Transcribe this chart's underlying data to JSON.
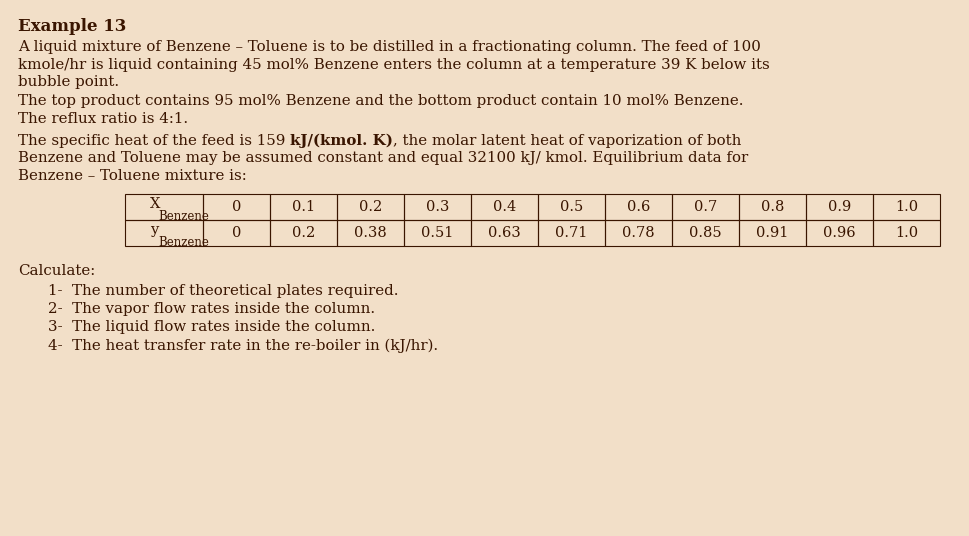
{
  "title": "Example 13",
  "paragraph1": "A liquid mixture of Benzene – Toluene is to be distilled in a fractionating column. The feed of 100\nkmole/hr is liquid containing 45 mol% Benzene enters the column at a temperature 39 K below its\nbubble point.",
  "paragraph2": "The top product contains 95 mol% Benzene and the bottom product contain 10 mol% Benzene.\nThe reflux ratio is 4:1.",
  "paragraph3_part1": "The specific heat of the feed is 159 ",
  "paragraph3_bold": "kJ/(kmol. K)",
  "paragraph3_part2_line1": ", the molar latent heat of vaporization of both",
  "paragraph3_part2_rest": "Benzene and Toluene may be assumed constant and equal 32100 kJ/ kmol. Equilibrium data for\nBenzene – Toluene mixture is:",
  "table_x_values": [
    "0",
    "0.1",
    "0.2",
    "0.3",
    "0.4",
    "0.5",
    "0.6",
    "0.7",
    "0.8",
    "0.9",
    "1.0"
  ],
  "table_y_values": [
    "0",
    "0.2",
    "0.38",
    "0.51",
    "0.63",
    "0.71",
    "0.78",
    "0.85",
    "0.91",
    "0.96",
    "1.0"
  ],
  "calculate_label": "Calculate:",
  "items": [
    "1-  The number of theoretical plates required.",
    "2-  The vapor flow rates inside the column.",
    "3-  The liquid flow rates inside the column.",
    "4-  The heat transfer rate in the re-boiler in (kJ/hr)."
  ],
  "bg_color": "#f2dfc8",
  "text_color": "#3a1500",
  "title_fontsize": 12,
  "body_fontsize": 10.8,
  "table_fontsize": 10.5,
  "table_sub_fontsize": 8.5
}
